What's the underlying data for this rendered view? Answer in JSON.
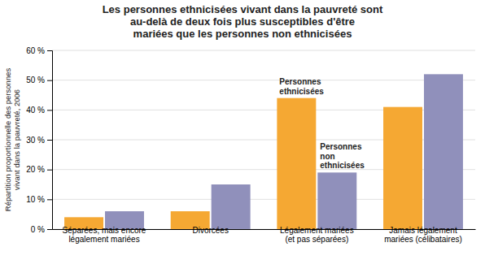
{
  "chart_data": {
    "type": "bar",
    "title": "Les personnes ethnicisées vivant dans la pauvreté sont\nau-delà de deux fois plus susceptibles d'être\nmariées que les personnes non ethnicisées",
    "y_label": "Répartition proportionnelle des personnes\nvivant dans la pauvreté, 2006",
    "categories": [
      "Séparées, mais encore\nlégalement mariées",
      "Divorcées",
      "Légalement mariées\n(et pas séparées)",
      "Jamais légalement\nmariées (célibataires)"
    ],
    "series": [
      {
        "name": "Personnes\nethnicisées",
        "color": "#F5A833",
        "values": [
          4,
          6,
          44,
          41
        ]
      },
      {
        "name": "Personnes\nnon\nethnicisées",
        "color": "#9090BB",
        "values": [
          6,
          15,
          19,
          52
        ]
      }
    ],
    "ylim": [
      0,
      60
    ],
    "yticks": [
      {
        "value": 0,
        "label": "0 %"
      },
      {
        "value": 10,
        "label": "10 %"
      },
      {
        "value": 20,
        "label": "20 %"
      },
      {
        "value": 30,
        "label": "30 %"
      },
      {
        "value": 40,
        "label": "40 %"
      },
      {
        "value": 50,
        "label": "50 %"
      },
      {
        "value": 60,
        "label": "60 %"
      }
    ],
    "grid": true
  }
}
